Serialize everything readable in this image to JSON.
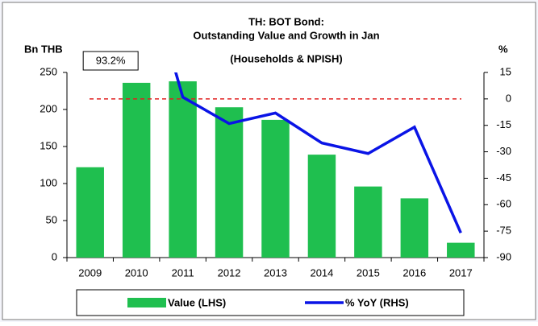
{
  "chart_data": {
    "type": "bar-line",
    "title": [
      "TH: BOT Bond:",
      "Outstanding Value and Growth in Jan",
      "(Households & NPISH)"
    ],
    "y_label": "Bn THB",
    "y2_label": "%",
    "categories": [
      "2009",
      "2010",
      "2011",
      "2012",
      "2013",
      "2014",
      "2015",
      "2016",
      "2017"
    ],
    "series": [
      {
        "name": "Value (LHS)",
        "type": "bar",
        "color": "#1fbf4f",
        "values": [
          122,
          236,
          238,
          203,
          186,
          139,
          96,
          80,
          20
        ]
      },
      {
        "name": "% YoY (RHS)",
        "type": "line",
        "axis": "y2",
        "color": "#0a14e6",
        "values": [
          null,
          93.2,
          1,
          -14,
          -8,
          -25,
          -31,
          -16,
          -76
        ],
        "value_labels": [
          null,
          "93.2%",
          null,
          null,
          null,
          null,
          null,
          null,
          null
        ]
      }
    ],
    "ylim": [
      0,
      250
    ],
    "yticks": [
      0,
      50,
      100,
      150,
      200,
      250
    ],
    "y2lim": [
      -90,
      15
    ],
    "y2ticks": [
      15,
      0,
      -15,
      -30,
      -45,
      -60,
      -75,
      -90
    ],
    "y2_reference_line": {
      "value": 0,
      "color": "#e02020"
    },
    "legend": "bottom"
  }
}
